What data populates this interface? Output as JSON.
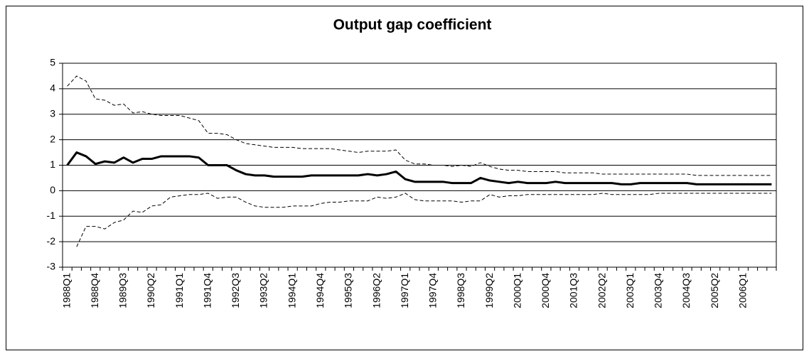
{
  "chart_data": {
    "type": "line",
    "title": "Output gap coefficient",
    "categories": [
      "1988Q1",
      null,
      null,
      "1988Q4",
      null,
      null,
      "1989Q3",
      null,
      null,
      "1990Q2",
      null,
      null,
      "1991Q1",
      null,
      null,
      "1991Q4",
      null,
      null,
      "1992Q3",
      null,
      null,
      "1993Q2",
      null,
      null,
      "1994Q1",
      null,
      null,
      "1994Q4",
      null,
      null,
      "1995Q3",
      null,
      null,
      "1996Q2",
      null,
      null,
      "1997Q1",
      null,
      null,
      "1997Q4",
      null,
      null,
      "1998Q3",
      null,
      null,
      "1999Q2",
      null,
      null,
      "2000Q1",
      null,
      null,
      "2000Q4",
      null,
      null,
      "2001Q3",
      null,
      null,
      "2002Q2",
      null,
      null,
      "2003Q1",
      null,
      null,
      "2003Q4",
      null,
      null,
      "2004Q3",
      null,
      null,
      "2005Q2",
      null,
      null,
      "2006Q1",
      null,
      null,
      null
    ],
    "series": [
      {
        "color": "#000000",
        "linestyle": "dashed",
        "values": [
          4.1,
          4.5,
          4.3,
          3.6,
          3.55,
          3.35,
          3.4,
          3.05,
          3.1,
          3.0,
          2.95,
          2.95,
          2.95,
          2.85,
          2.75,
          2.25,
          2.25,
          2.2,
          2.0,
          1.85,
          1.8,
          1.75,
          1.7,
          1.7,
          1.7,
          1.65,
          1.65,
          1.65,
          1.65,
          1.6,
          1.55,
          1.5,
          1.55,
          1.55,
          1.55,
          1.6,
          1.2,
          1.05,
          1.05,
          1.0,
          1.0,
          0.95,
          1.0,
          0.95,
          1.1,
          0.95,
          0.85,
          0.8,
          0.8,
          0.75,
          0.75,
          0.75,
          0.75,
          0.7,
          0.7,
          0.7,
          0.7,
          0.65,
          0.65,
          0.65,
          0.65,
          0.65,
          0.65,
          0.65,
          0.65,
          0.65,
          0.65,
          0.6,
          0.6,
          0.6,
          0.6,
          0.6,
          0.6,
          0.6,
          0.6,
          0.6
        ]
      },
      {
        "color": "#000000",
        "linestyle": "solid",
        "values": [
          1.0,
          1.5,
          1.35,
          1.05,
          1.15,
          1.1,
          1.3,
          1.1,
          1.25,
          1.25,
          1.35,
          1.35,
          1.35,
          1.35,
          1.3,
          1.0,
          1.0,
          1.0,
          0.8,
          0.65,
          0.6,
          0.6,
          0.55,
          0.55,
          0.55,
          0.55,
          0.6,
          0.6,
          0.6,
          0.6,
          0.6,
          0.6,
          0.65,
          0.6,
          0.65,
          0.75,
          0.45,
          0.35,
          0.35,
          0.35,
          0.35,
          0.3,
          0.3,
          0.3,
          0.5,
          0.4,
          0.35,
          0.3,
          0.35,
          0.3,
          0.3,
          0.3,
          0.35,
          0.3,
          0.3,
          0.3,
          0.3,
          0.3,
          0.3,
          0.25,
          0.25,
          0.3,
          0.3,
          0.3,
          0.3,
          0.3,
          0.3,
          0.25,
          0.25,
          0.25,
          0.25,
          0.25,
          0.25,
          0.25,
          0.25,
          0.25
        ]
      },
      {
        "color": "#000000",
        "linestyle": "dashed",
        "values": [
          null,
          -2.2,
          -1.4,
          -1.4,
          -1.5,
          -1.25,
          -1.15,
          -0.8,
          -0.85,
          -0.6,
          -0.55,
          -0.25,
          -0.2,
          -0.15,
          -0.15,
          -0.1,
          -0.3,
          -0.25,
          -0.25,
          -0.45,
          -0.6,
          -0.65,
          -0.65,
          -0.65,
          -0.6,
          -0.6,
          -0.6,
          -0.5,
          -0.45,
          -0.45,
          -0.4,
          -0.4,
          -0.4,
          -0.25,
          -0.3,
          -0.25,
          -0.1,
          -0.35,
          -0.4,
          -0.4,
          -0.4,
          -0.4,
          -0.45,
          -0.4,
          -0.4,
          -0.15,
          -0.25,
          -0.2,
          -0.2,
          -0.15,
          -0.15,
          -0.15,
          -0.15,
          -0.15,
          -0.15,
          -0.15,
          -0.15,
          -0.1,
          -0.15,
          -0.15,
          -0.15,
          -0.15,
          -0.15,
          -0.1,
          -0.1,
          -0.1,
          -0.1,
          -0.1,
          -0.1,
          -0.1,
          -0.1,
          -0.1,
          -0.1,
          -0.1,
          -0.1,
          -0.1
        ]
      }
    ],
    "ylim": [
      -3,
      5
    ],
    "yticks": [
      -3,
      -2,
      -1,
      0,
      1,
      2,
      3,
      4,
      5
    ],
    "grid": true
  }
}
